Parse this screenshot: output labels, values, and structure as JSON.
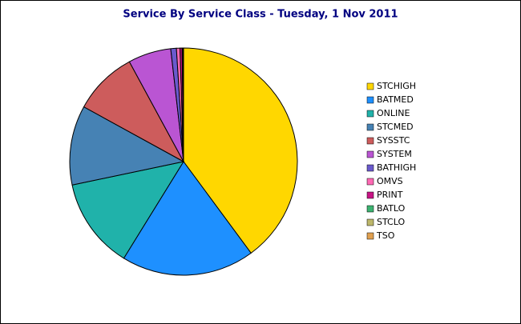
{
  "chart_data": {
    "type": "pie",
    "title": "Service By Service Class - Tuesday, 1 Nov 2011",
    "categories": [
      "STCHIGH",
      "BATMED",
      "ONLINE",
      "STCMED",
      "SYSSTC",
      "SYSTEM",
      "BATHIGH",
      "OMVS",
      "PRINT",
      "BATLO",
      "STCLO",
      "TSO"
    ],
    "values": [
      39.9,
      18.9,
      12.9,
      11.3,
      9.1,
      6.1,
      0.8,
      0.5,
      0.3,
      0.1,
      0.05,
      0.05
    ],
    "colors": [
      "#FFD700",
      "#1E90FF",
      "#20B2AA",
      "#4682B4",
      "#CD5C5C",
      "#BA55D3",
      "#6A5ACD",
      "#FF69B4",
      "#C71585",
      "#3CB371",
      "#BDB76B",
      "#E0A050"
    ],
    "legend": "right"
  }
}
